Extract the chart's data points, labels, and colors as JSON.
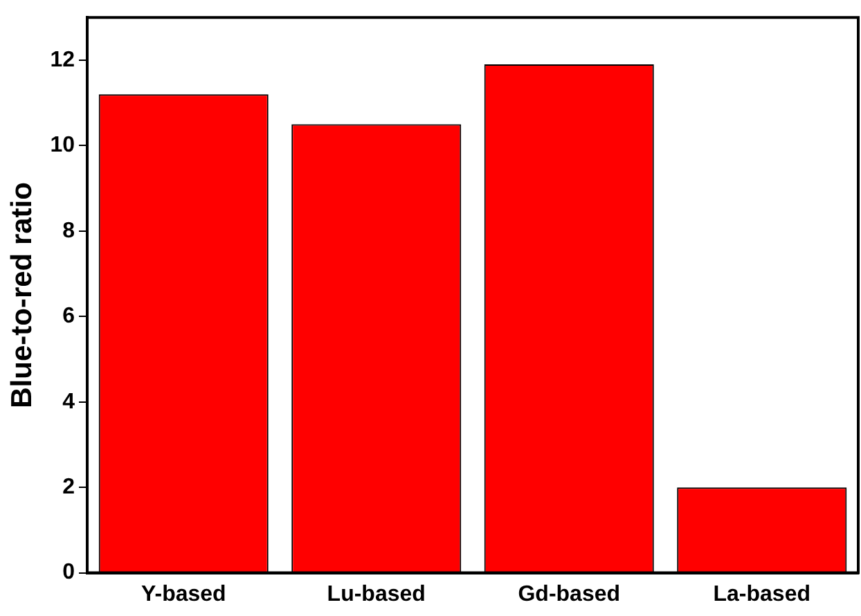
{
  "chart_data": {
    "type": "bar",
    "ylabel": "Blue-to-red ratio",
    "categories": [
      "Y-based",
      "Lu-based",
      "Gd-based",
      "La-based"
    ],
    "values": [
      11.2,
      10.5,
      11.9,
      2.0
    ],
    "color": "#ff0000",
    "ylim": [
      0,
      13
    ],
    "yticks": [
      0,
      2,
      4,
      6,
      8,
      10,
      12
    ],
    "grid": false,
    "legend": false
  }
}
